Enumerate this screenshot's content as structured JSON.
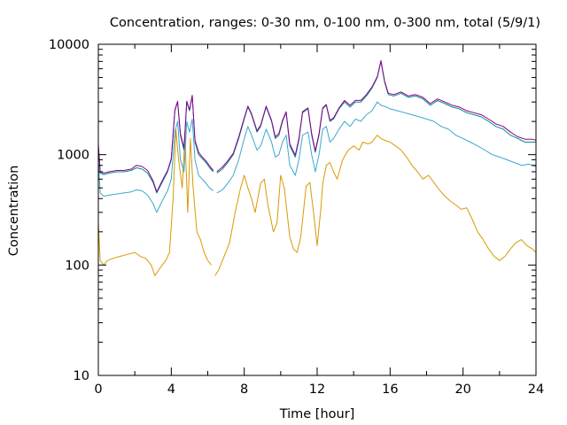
{
  "chart_data": {
    "type": "line",
    "title": "Concentration, ranges: 0-30 nm, 0-100 nm, 0-300 nm, total (5/9/1)",
    "xlabel": "Time [hour]",
    "ylabel": "Concentration",
    "xlim": [
      0,
      24
    ],
    "ylim": [
      10,
      10000
    ],
    "y_scale": "log",
    "x_ticks": [
      0,
      4,
      8,
      12,
      16,
      20,
      24
    ],
    "x_tick_labels": [
      "0",
      "4",
      "8",
      "12",
      "16",
      "20",
      "24"
    ],
    "y_ticks": [
      10,
      100,
      1000,
      10000
    ],
    "y_tick_labels": [
      "10",
      "100",
      "1000",
      "10000"
    ],
    "grid": false,
    "legend": "none",
    "colors": [
      "#d89a00",
      "#3aa8d0",
      "#009090",
      "#8b008b"
    ],
    "series": [
      {
        "color": "#d89a00",
        "x": [
          0,
          0.1,
          0.3,
          0.5,
          0.8,
          1.2,
          1.6,
          2.0,
          2.3,
          2.6,
          2.9,
          3.1,
          3.4,
          3.7,
          3.9,
          4.1,
          4.25,
          4.4,
          4.6,
          4.75,
          4.9,
          5.05,
          5.2,
          5.4,
          5.6,
          5.8,
          6.0,
          6.2,
          null,
          6.4,
          6.6,
          6.9,
          7.2,
          7.5,
          7.8,
          8.0,
          8.2,
          8.4,
          8.6,
          8.9,
          9.1,
          9.3,
          9.6,
          9.8,
          10.0,
          10.2,
          10.5,
          10.7,
          10.9,
          11.1,
          11.4,
          11.6,
          11.8,
          12.0,
          12.2,
          12.3,
          12.5,
          12.7,
          12.9,
          13.1,
          13.4,
          13.7,
          14.0,
          14.3,
          14.5,
          14.8,
          15.0,
          15.3,
          15.5,
          15.7,
          16.0,
          16.3,
          16.6,
          16.9,
          17.2,
          17.5,
          17.8,
          18.1,
          18.4,
          18.7,
          19.0,
          19.3,
          19.6,
          19.9,
          20.2,
          20.5,
          20.8,
          21.1,
          21.4,
          21.7,
          22.0,
          22.3,
          22.6,
          22.9,
          23.2,
          23.5,
          23.8,
          24.0
        ],
        "values": [
          240,
          110,
          100,
          110,
          115,
          120,
          125,
          130,
          120,
          115,
          100,
          80,
          95,
          110,
          130,
          400,
          1700,
          900,
          500,
          1500,
          300,
          1400,
          500,
          200,
          170,
          130,
          110,
          100,
          null,
          80,
          90,
          120,
          160,
          300,
          500,
          650,
          500,
          400,
          300,
          550,
          600,
          350,
          200,
          240,
          650,
          500,
          180,
          140,
          130,
          180,
          520,
          560,
          300,
          150,
          320,
          540,
          800,
          850,
          700,
          600,
          900,
          1100,
          1200,
          1100,
          1300,
          1250,
          1300,
          1500,
          1400,
          1350,
          1300,
          1200,
          1100,
          950,
          800,
          700,
          600,
          650,
          560,
          480,
          420,
          380,
          350,
          320,
          330,
          260,
          200,
          170,
          140,
          120,
          110,
          120,
          140,
          160,
          170,
          150,
          140,
          130
        ]
      },
      {
        "color": "#3aa8d0",
        "x": [
          0,
          0.1,
          0.3,
          0.6,
          1.0,
          1.4,
          1.8,
          2.1,
          2.4,
          2.7,
          3.0,
          3.2,
          3.5,
          3.8,
          4.0,
          4.2,
          4.35,
          4.5,
          4.7,
          4.85,
          5.0,
          5.15,
          5.3,
          5.5,
          5.7,
          5.9,
          6.1,
          6.3,
          null,
          6.5,
          6.8,
          7.1,
          7.4,
          7.7,
          8.0,
          8.2,
          8.4,
          8.7,
          8.9,
          9.2,
          9.5,
          9.7,
          9.9,
          10.1,
          10.3,
          10.5,
          10.8,
          11.0,
          11.2,
          11.5,
          11.7,
          11.9,
          12.1,
          12.3,
          12.5,
          12.7,
          12.9,
          13.2,
          13.5,
          13.8,
          14.1,
          14.4,
          14.7,
          15.0,
          15.3,
          15.5,
          15.8,
          16.0,
          16.4,
          16.8,
          17.2,
          17.6,
          18.0,
          18.4,
          18.8,
          19.2,
          19.6,
          20.0,
          20.4,
          20.8,
          21.2,
          21.6,
          22.0,
          22.4,
          22.8,
          23.2,
          23.6,
          24.0
        ],
        "values": [
          900,
          450,
          420,
          430,
          440,
          450,
          460,
          480,
          470,
          430,
          360,
          300,
          380,
          470,
          600,
          1600,
          2000,
          900,
          700,
          2000,
          1600,
          2100,
          900,
          650,
          600,
          550,
          500,
          470,
          null,
          450,
          480,
          550,
          650,
          900,
          1400,
          1800,
          1500,
          1100,
          1200,
          1700,
          1300,
          950,
          1000,
          1300,
          1500,
          800,
          650,
          900,
          1500,
          1600,
          1000,
          700,
          1000,
          1700,
          1800,
          1300,
          1400,
          1700,
          2000,
          1800,
          2100,
          2000,
          2300,
          2500,
          3000,
          2800,
          2700,
          2600,
          2500,
          2400,
          2300,
          2200,
          2100,
          2000,
          1800,
          1700,
          1500,
          1400,
          1300,
          1200,
          1100,
          1000,
          950,
          900,
          850,
          800,
          820,
          780
        ]
      },
      {
        "color": "#009090",
        "x": [
          0,
          0.1,
          0.3,
          0.6,
          1.0,
          1.4,
          1.8,
          2.1,
          2.4,
          2.7,
          3.0,
          3.2,
          3.5,
          3.8,
          4.0,
          4.2,
          4.35,
          4.5,
          4.7,
          4.85,
          5.0,
          5.15,
          5.3,
          5.5,
          5.7,
          5.9,
          6.1,
          6.3,
          null,
          6.5,
          6.8,
          7.1,
          7.4,
          7.7,
          8.0,
          8.2,
          8.4,
          8.7,
          8.9,
          9.2,
          9.5,
          9.7,
          9.9,
          10.1,
          10.3,
          10.5,
          10.8,
          11.0,
          11.2,
          11.5,
          11.7,
          11.9,
          12.1,
          12.3,
          12.5,
          12.7,
          12.9,
          13.2,
          13.5,
          13.8,
          14.1,
          14.4,
          14.7,
          15.0,
          15.3,
          15.5,
          15.7,
          15.9,
          16.2,
          16.6,
          17.0,
          17.4,
          17.8,
          18.2,
          18.6,
          19.0,
          19.4,
          19.8,
          20.2,
          20.6,
          21.0,
          21.4,
          21.8,
          22.2,
          22.6,
          23.0,
          23.4,
          23.8,
          24.0
        ],
        "values": [
          1200,
          680,
          660,
          680,
          700,
          700,
          720,
          760,
          740,
          680,
          560,
          450,
          560,
          700,
          900,
          2500,
          3000,
          1500,
          1100,
          3000,
          2500,
          3400,
          1300,
          1000,
          920,
          850,
          760,
          700,
          null,
          680,
          740,
          850,
          1000,
          1400,
          2100,
          2700,
          2300,
          1600,
          1800,
          2700,
          2000,
          1400,
          1500,
          2000,
          2400,
          1200,
          950,
          1350,
          2400,
          2600,
          1500,
          1050,
          1500,
          2600,
          2800,
          2000,
          2100,
          2600,
          3000,
          2700,
          3000,
          3000,
          3400,
          4000,
          5000,
          7000,
          4500,
          3500,
          3400,
          3600,
          3300,
          3400,
          3200,
          2800,
          3100,
          2900,
          2700,
          2600,
          2400,
          2300,
          2200,
          2000,
          1800,
          1700,
          1500,
          1400,
          1300,
          1300,
          1300
        ]
      },
      {
        "color": "#8b008b",
        "x": [
          0,
          0.1,
          0.3,
          0.6,
          1.0,
          1.4,
          1.8,
          2.1,
          2.4,
          2.7,
          3.0,
          3.2,
          3.5,
          3.8,
          4.0,
          4.2,
          4.35,
          4.5,
          4.7,
          4.85,
          5.0,
          5.15,
          5.3,
          5.5,
          5.7,
          5.9,
          6.1,
          6.3,
          null,
          6.5,
          6.8,
          7.1,
          7.4,
          7.7,
          8.0,
          8.2,
          8.4,
          8.7,
          8.9,
          9.2,
          9.5,
          9.7,
          9.9,
          10.1,
          10.3,
          10.5,
          10.8,
          11.0,
          11.2,
          11.5,
          11.7,
          11.9,
          12.1,
          12.3,
          12.5,
          12.7,
          12.9,
          13.2,
          13.5,
          13.8,
          14.1,
          14.4,
          14.7,
          15.0,
          15.3,
          15.5,
          15.7,
          15.9,
          16.2,
          16.6,
          17.0,
          17.4,
          17.8,
          18.2,
          18.6,
          19.0,
          19.4,
          19.8,
          20.2,
          20.6,
          21.0,
          21.4,
          21.8,
          22.2,
          22.6,
          23.0,
          23.4,
          23.8,
          24.0
        ],
        "values": [
          1250,
          700,
          680,
          700,
          720,
          720,
          740,
          800,
          780,
          720,
          580,
          460,
          580,
          720,
          920,
          2550,
          3050,
          1550,
          1150,
          3050,
          2550,
          3450,
          1350,
          1050,
          950,
          880,
          790,
          720,
          null,
          700,
          770,
          880,
          1030,
          1450,
          2150,
          2750,
          2350,
          1650,
          1850,
          2750,
          2050,
          1450,
          1550,
          2050,
          2450,
          1250,
          990,
          1400,
          2450,
          2650,
          1550,
          1080,
          1550,
          2650,
          2850,
          2050,
          2150,
          2650,
          3100,
          2800,
          3100,
          3100,
          3500,
          4100,
          5100,
          7100,
          4600,
          3600,
          3500,
          3700,
          3400,
          3500,
          3300,
          2900,
          3200,
          3000,
          2800,
          2700,
          2500,
          2400,
          2300,
          2100,
          1900,
          1800,
          1600,
          1450,
          1380,
          1380,
          1350
        ]
      }
    ]
  }
}
